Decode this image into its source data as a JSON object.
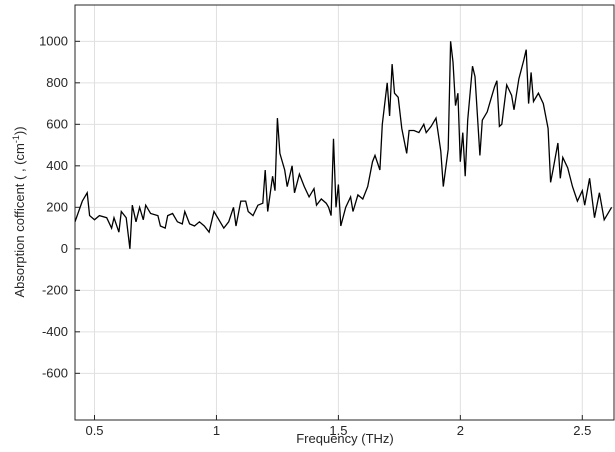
{
  "chart_data": {
    "type": "line",
    "xlabel": "Frequency (THz)",
    "ylabel_parts": [
      "Absorption cofficent ( ,  (cm",
      "-1",
      "))"
    ],
    "xlim": [
      0.42,
      2.63
    ],
    "ylim": [
      -825,
      1175
    ],
    "xticks": [
      0.5,
      1,
      1.5,
      2,
      2.5
    ],
    "yticks": [
      -600,
      -400,
      -200,
      0,
      200,
      400,
      600,
      800,
      1000
    ],
    "grid": true,
    "series": [
      {
        "color": "#000000",
        "x": [
          0.42,
          0.45,
          0.47,
          0.48,
          0.5,
          0.52,
          0.55,
          0.57,
          0.58,
          0.6,
          0.61,
          0.63,
          0.645,
          0.655,
          0.67,
          0.685,
          0.7,
          0.71,
          0.73,
          0.76,
          0.77,
          0.79,
          0.8,
          0.82,
          0.84,
          0.86,
          0.87,
          0.89,
          0.91,
          0.93,
          0.95,
          0.97,
          0.99,
          1.01,
          1.03,
          1.05,
          1.07,
          1.08,
          1.1,
          1.12,
          1.13,
          1.15,
          1.17,
          1.19,
          1.2,
          1.21,
          1.23,
          1.24,
          1.25,
          1.26,
          1.28,
          1.29,
          1.31,
          1.32,
          1.34,
          1.36,
          1.38,
          1.4,
          1.41,
          1.43,
          1.45,
          1.46,
          1.47,
          1.48,
          1.49,
          1.5,
          1.51,
          1.53,
          1.55,
          1.56,
          1.58,
          1.6,
          1.62,
          1.64,
          1.65,
          1.67,
          1.68,
          1.7,
          1.71,
          1.72,
          1.73,
          1.745,
          1.76,
          1.78,
          1.79,
          1.81,
          1.83,
          1.85,
          1.86,
          1.88,
          1.9,
          1.92,
          1.93,
          1.95,
          1.96,
          1.97,
          1.98,
          1.99,
          2.0,
          2.01,
          2.02,
          2.03,
          2.05,
          2.06,
          2.08,
          2.09,
          2.11,
          2.12,
          2.14,
          2.15,
          2.16,
          2.17,
          2.19,
          2.21,
          2.22,
          2.24,
          2.26,
          2.27,
          2.28,
          2.29,
          2.3,
          2.32,
          2.34,
          2.36,
          2.37,
          2.38,
          2.4,
          2.41,
          2.42,
          2.44,
          2.46,
          2.48,
          2.5,
          2.51,
          2.53,
          2.55,
          2.57,
          2.59,
          2.62
        ],
        "values": [
          130,
          230,
          270,
          160,
          140,
          160,
          150,
          100,
          150,
          80,
          180,
          150,
          0,
          210,
          130,
          200,
          140,
          210,
          170,
          160,
          110,
          100,
          160,
          170,
          130,
          120,
          180,
          120,
          110,
          130,
          110,
          80,
          180,
          140,
          100,
          130,
          200,
          110,
          230,
          230,
          180,
          160,
          210,
          220,
          380,
          180,
          350,
          280,
          630,
          460,
          380,
          300,
          400,
          270,
          360,
          300,
          250,
          290,
          210,
          240,
          220,
          200,
          160,
          530,
          200,
          310,
          110,
          200,
          250,
          180,
          260,
          240,
          300,
          420,
          450,
          380,
          600,
          800,
          640,
          890,
          750,
          730,
          580,
          460,
          570,
          570,
          560,
          600,
          560,
          590,
          630,
          470,
          300,
          480,
          1000,
          900,
          690,
          750,
          420,
          560,
          350,
          620,
          880,
          830,
          450,
          620,
          660,
          700,
          780,
          810,
          590,
          600,
          790,
          740,
          670,
          820,
          910,
          960,
          700,
          850,
          710,
          750,
          700,
          580,
          320,
          380,
          510,
          340,
          440,
          390,
          300,
          230,
          280,
          210,
          340,
          150,
          270,
          140,
          200
        ]
      }
    ]
  }
}
